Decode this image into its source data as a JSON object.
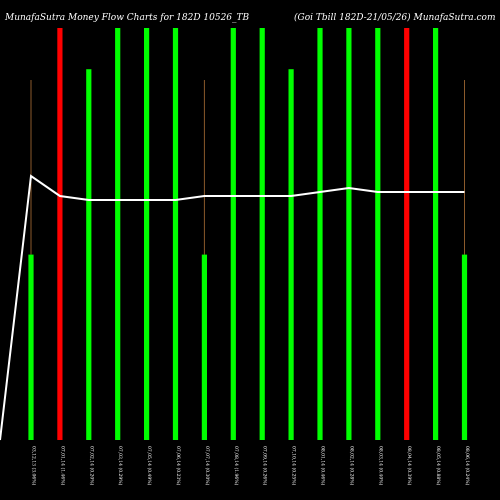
{
  "header": {
    "left": "MunafaSutra  Money Flow Charts for 182D 10526_TB",
    "right": "(Goi Tbill 182D-21/05/26) MunafaSutra.com"
  },
  "chart_data": {
    "type": "bar",
    "categories": [
      "03,12,13 (3.06%)",
      "07,01,14 (1.46%)",
      "07,02,14 (0.20%)",
      "07,03,14 (0.29%)",
      "07,05,14 (0.49%)",
      "07,06,14 (0.23%)",
      "07,07,14 (0.30%)",
      "07,08,14 (1.96%)",
      "07,09,14 (0.26%)",
      "07,10,14 (0.25%)",
      "08,01,14 (0.46%)",
      "08,02,14 (0.28%)",
      "08,03,14 (0.40%)",
      "08,04,14 (0.39%)",
      "08,05,14 (0.88%)",
      "08,06,14 (0.24%)"
    ],
    "series": [
      {
        "values": [
          0.45,
          1.0,
          0.9,
          1.0,
          1.0,
          1.0,
          0.45,
          1.0,
          1.0,
          0.9,
          1.0,
          1.0,
          1.0,
          1.0,
          1.0,
          0.45
        ],
        "colors": [
          "#00ff00",
          "#ff0000",
          "#00ff00",
          "#00ff00",
          "#00ff00",
          "#00ff00",
          "#00ff00",
          "#00ff00",
          "#00ff00",
          "#00ff00",
          "#00ff00",
          "#00ff00",
          "#00ff00",
          "#ff0000",
          "#00ff00",
          "#00ff00"
        ]
      },
      {
        "values": [
          0.66,
          0.61,
          0.6,
          0.6,
          0.6,
          0.6,
          0.61,
          0.61,
          0.61,
          0.61,
          0.62,
          0.63,
          0.62,
          0.62,
          0.62,
          0.62
        ],
        "color": "#ffffff"
      }
    ],
    "line_start": 0.0,
    "colors": {
      "background": "#000000",
      "up": "#00ff00",
      "down": "#ff0000",
      "line": "#ffffff",
      "stick": "#8b5a2b"
    }
  }
}
